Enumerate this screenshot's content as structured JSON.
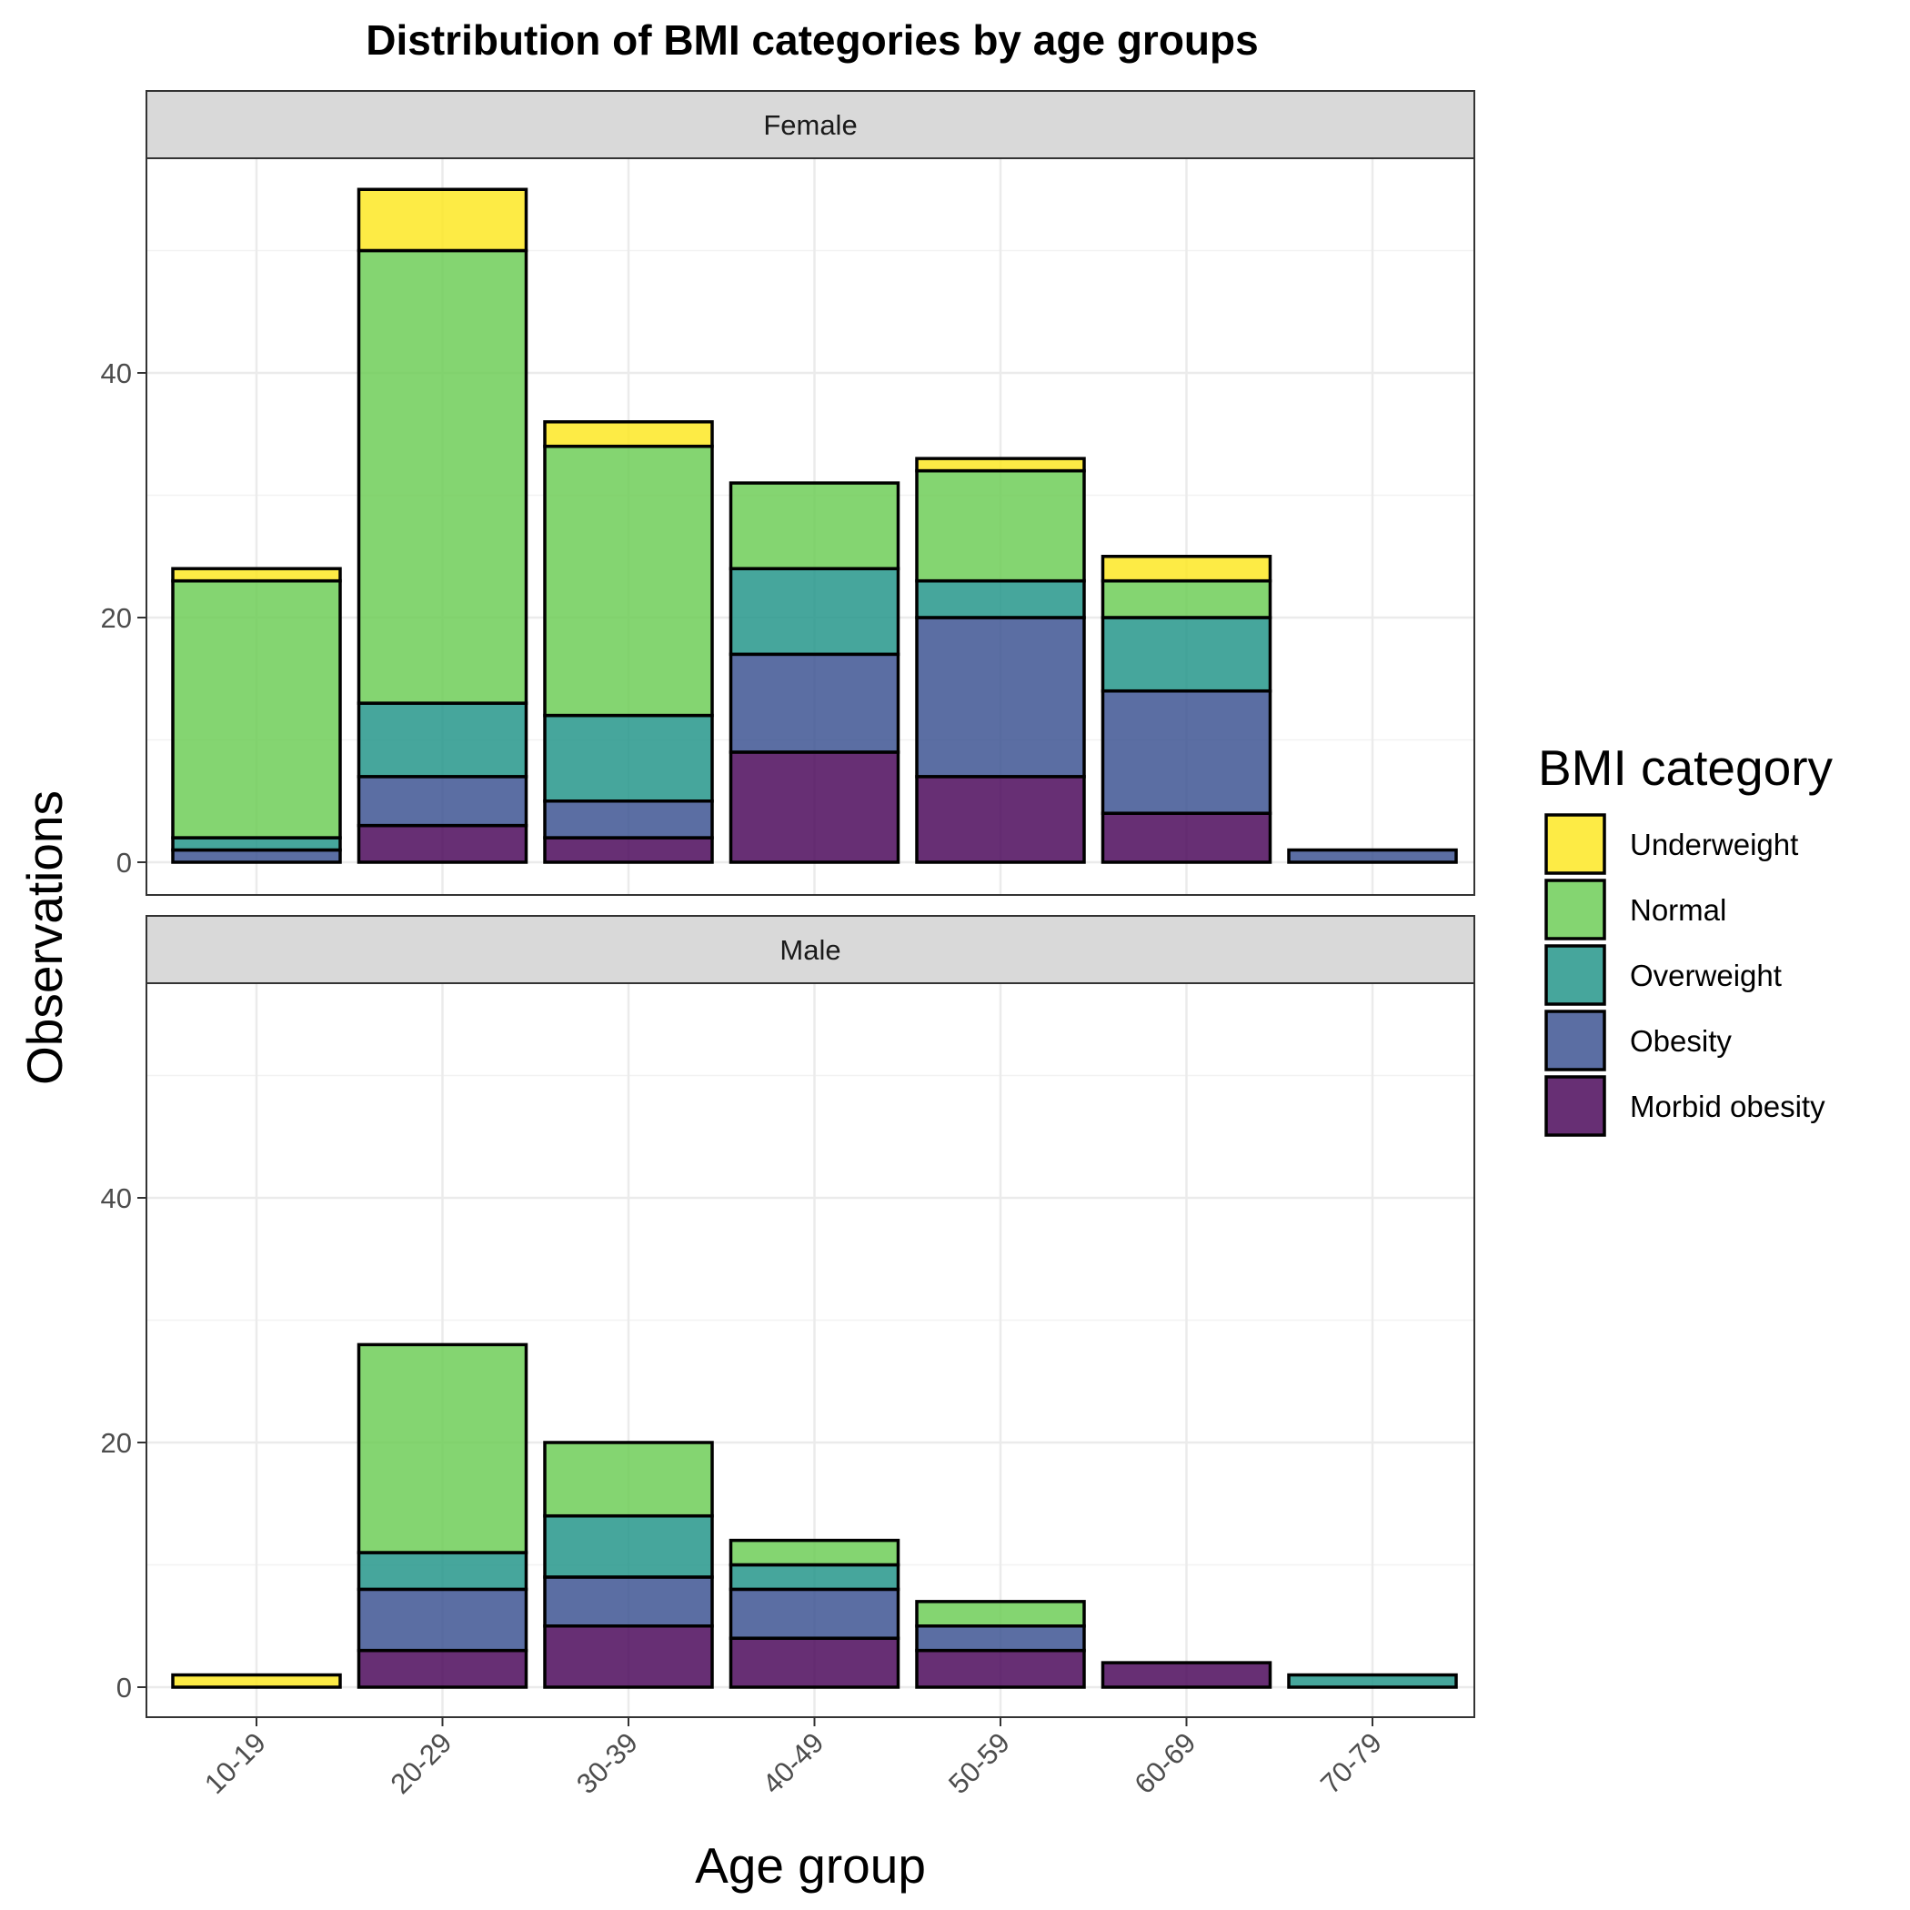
{
  "chart_data": {
    "type": "bar",
    "stacked": true,
    "title": "Distribution of BMI categories by age groups",
    "xlabel": "Age group",
    "ylabel": "Observations",
    "categories": [
      "10-19",
      "20-29",
      "30-39",
      "40-49",
      "50-59",
      "60-69",
      "70-79"
    ],
    "ylim": [
      0,
      55
    ],
    "yticks": [
      0,
      20,
      40
    ],
    "grid": true,
    "legend": {
      "title": "BMI category",
      "position": "right",
      "entries": [
        "Underweight",
        "Normal",
        "Overweight",
        "Obesity",
        "Morbid obesity"
      ]
    },
    "series_colors": {
      "Underweight": "#fde725",
      "Normal": "#6ece58",
      "Overweight": "#26968b",
      "Obesity": "#3e5593",
      "Morbid obesity": "#4c0a5c"
    },
    "facets": [
      {
        "label": "Female",
        "series": [
          {
            "name": "Morbid obesity",
            "values": [
              0,
              3,
              2,
              9,
              7,
              4,
              0
            ]
          },
          {
            "name": "Obesity",
            "values": [
              1,
              4,
              3,
              8,
              13,
              10,
              1
            ]
          },
          {
            "name": "Overweight",
            "values": [
              1,
              6,
              7,
              7,
              3,
              6,
              0
            ]
          },
          {
            "name": "Normal",
            "values": [
              21,
              37,
              22,
              7,
              9,
              3,
              0
            ]
          },
          {
            "name": "Underweight",
            "values": [
              1,
              5,
              2,
              0,
              1,
              2,
              0
            ]
          }
        ]
      },
      {
        "label": "Male",
        "series": [
          {
            "name": "Morbid obesity",
            "values": [
              0,
              3,
              5,
              4,
              3,
              2,
              0
            ]
          },
          {
            "name": "Obesity",
            "values": [
              0,
              5,
              4,
              4,
              2,
              0,
              0
            ]
          },
          {
            "name": "Overweight",
            "values": [
              0,
              3,
              5,
              2,
              0,
              0,
              1
            ]
          },
          {
            "name": "Normal",
            "values": [
              0,
              17,
              6,
              2,
              2,
              0,
              0
            ]
          },
          {
            "name": "Underweight",
            "values": [
              1,
              0,
              0,
              0,
              0,
              0,
              0
            ]
          }
        ]
      }
    ]
  }
}
